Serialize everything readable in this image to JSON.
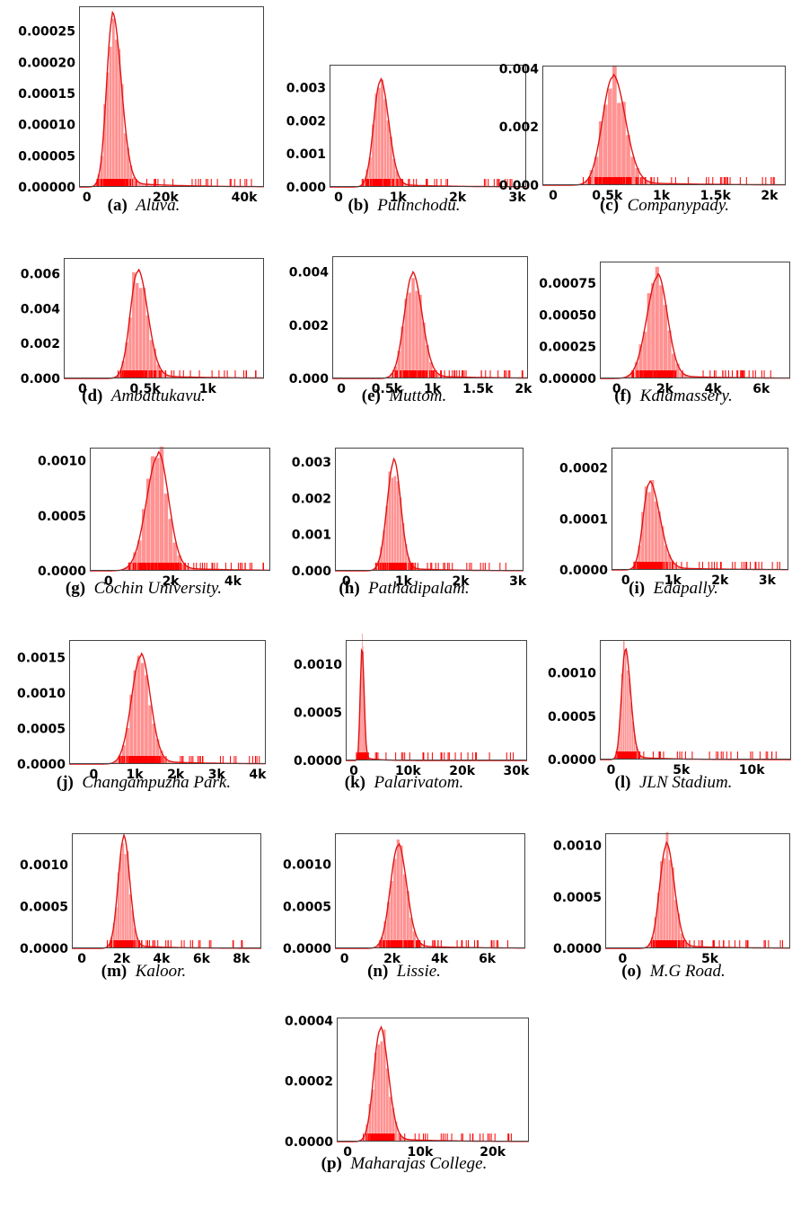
{
  "figure": {
    "colors": {
      "bar": "#ff7f7f",
      "kde": "#e01515",
      "rug": "#ff0000"
    },
    "subplots": [
      {
        "letter": "(a)",
        "name": "Aluva."
      },
      {
        "letter": "(b)",
        "name": "Pulinchodu."
      },
      {
        "letter": "(c)",
        "name": "Companypady."
      },
      {
        "letter": "(d)",
        "name": "Ambattukavu."
      },
      {
        "letter": "(e)",
        "name": "Muttom."
      },
      {
        "letter": "(f)",
        "name": "Kalamassery."
      },
      {
        "letter": "(g)",
        "name": "Cochin University."
      },
      {
        "letter": "(h)",
        "name": "Pathadipalam."
      },
      {
        "letter": "(i)",
        "name": "Edapally."
      },
      {
        "letter": "(j)",
        "name": "Changampuzha Park."
      },
      {
        "letter": "(k)",
        "name": "Palarivatom."
      },
      {
        "letter": "(l)",
        "name": "JLN Stadium."
      },
      {
        "letter": "(m)",
        "name": "Kaloor."
      },
      {
        "letter": "(n)",
        "name": "Lissie."
      },
      {
        "letter": "(o)",
        "name": "M.G Road."
      },
      {
        "letter": "(p)",
        "name": "Maharajas College."
      }
    ]
  },
  "chart_data": [
    {
      "type": "area",
      "xlim": [
        -2000,
        45000
      ],
      "ylim": [
        0,
        0.00029
      ],
      "mode": 6500,
      "peak": 0.000272,
      "sdL": 1500,
      "sdR": 2200,
      "rugMax": 42000,
      "yticks": [
        0,
        5e-05,
        0.0001,
        0.00015,
        0.0002,
        0.00025
      ],
      "yticklabels": [
        "0.00000",
        "0.00005",
        "0.00010",
        "0.00015",
        "0.00020",
        "0.00025"
      ],
      "xticks": [
        0,
        20000,
        40000
      ],
      "xticklabels": [
        "0",
        "20k",
        "40k"
      ]
    },
    {
      "type": "area",
      "xlim": [
        -150,
        3150
      ],
      "ylim": [
        0,
        0.0037
      ],
      "mode": 700,
      "peak": 0.0032,
      "sdL": 110,
      "sdR": 140,
      "rugMax": 2950,
      "yticks": [
        0,
        0.001,
        0.002,
        0.003
      ],
      "yticklabels": [
        "0.000",
        "0.001",
        "0.002",
        "0.003"
      ],
      "xticks": [
        0,
        1000,
        2000,
        3000
      ],
      "xticklabels": [
        "0",
        "1k",
        "2k",
        "3k"
      ]
    },
    {
      "type": "area",
      "xlim": [
        -100,
        2150
      ],
      "ylim": [
        0,
        0.0041
      ],
      "mode": 550,
      "peak": 0.0037,
      "sdL": 95,
      "sdR": 115,
      "rugMax": 2050,
      "yticks": [
        0,
        0.002,
        0.004
      ],
      "yticklabels": [
        "0.000",
        "0.002",
        "0.004"
      ],
      "xticks": [
        0,
        500,
        1000,
        1500,
        2000
      ],
      "xticklabels": [
        "0",
        "0.5k",
        "1k",
        "1.5k",
        "2k"
      ]
    },
    {
      "type": "area",
      "xlim": [
        -150,
        1450
      ],
      "ylim": [
        0,
        0.0069
      ],
      "mode": 440,
      "peak": 0.0061,
      "sdL": 60,
      "sdR": 80,
      "rugMax": 1400,
      "yticks": [
        0,
        0.002,
        0.004,
        0.006
      ],
      "yticklabels": [
        "0.000",
        "0.002",
        "0.004",
        "0.006"
      ],
      "xticks": [
        0,
        500,
        1000
      ],
      "xticklabels": [
        "0",
        "0.5k",
        "1k"
      ]
    },
    {
      "type": "area",
      "xlim": [
        -100,
        2050
      ],
      "ylim": [
        0,
        0.0046
      ],
      "mode": 780,
      "peak": 0.0039,
      "sdL": 90,
      "sdR": 105,
      "rugMax": 2000,
      "yticks": [
        0,
        0.002,
        0.004
      ],
      "yticklabels": [
        "0.000",
        "0.002",
        "0.004"
      ],
      "xticks": [
        0,
        500,
        1000,
        1500,
        2000
      ],
      "xticklabels": [
        "0",
        "0.5k",
        "1k",
        "1.5k",
        "2k"
      ]
    },
    {
      "type": "area",
      "xlim": [
        -700,
        7200
      ],
      "ylim": [
        0,
        0.00092
      ],
      "mode": 1700,
      "peak": 0.0008,
      "sdL": 450,
      "sdR": 400,
      "rugMax": 6900,
      "yticks": [
        0,
        0.00025,
        0.0005,
        0.00075
      ],
      "yticklabels": [
        "0.00000",
        "0.00025",
        "0.00050",
        "0.00075"
      ],
      "xticks": [
        0,
        2000,
        4000,
        6000
      ],
      "xticklabels": [
        "0",
        "2k",
        "4k",
        "6k"
      ]
    },
    {
      "type": "area",
      "xlim": [
        -600,
        5200
      ],
      "ylim": [
        0,
        0.00112
      ],
      "mode": 1600,
      "peak": 0.00105,
      "sdL": 380,
      "sdR": 330,
      "rugMax": 5000,
      "yticks": [
        0,
        0.0005,
        0.001
      ],
      "yticklabels": [
        "0.0000",
        "0.0005",
        "0.0010"
      ],
      "xticks": [
        0,
        2000,
        4000
      ],
      "xticklabels": [
        "0",
        "2k",
        "4k"
      ]
    },
    {
      "type": "area",
      "xlim": [
        -200,
        3100
      ],
      "ylim": [
        0,
        0.0034
      ],
      "mode": 830,
      "peak": 0.003,
      "sdL": 120,
      "sdR": 120,
      "rugMax": 2900,
      "yticks": [
        0,
        0.001,
        0.002,
        0.003
      ],
      "yticklabels": [
        "0.000",
        "0.001",
        "0.002",
        "0.003"
      ],
      "xticks": [
        0,
        1000,
        2000,
        3000
      ],
      "xticklabels": [
        "0",
        "1k",
        "2k",
        "3k"
      ]
    },
    {
      "type": "area",
      "xlim": [
        -300,
        3450
      ],
      "ylim": [
        0,
        0.00024
      ],
      "mode": 500,
      "peak": 0.00017,
      "sdL": 130,
      "sdR": 220,
      "rugMax": 3300,
      "yticks": [
        0,
        0.0001,
        0.0002
      ],
      "yticklabels": [
        "0.0000",
        "0.0001",
        "0.0002"
      ],
      "xticks": [
        0,
        1000,
        2000,
        3000
      ],
      "xticklabels": [
        "0",
        "1k",
        "2k",
        "3k"
      ]
    },
    {
      "type": "area",
      "xlim": [
        -600,
        4200
      ],
      "ylim": [
        0,
        0.00175
      ],
      "mode": 1150,
      "peak": 0.00152,
      "sdL": 230,
      "sdR": 230,
      "rugMax": 4100,
      "yticks": [
        0,
        0.0005,
        0.001,
        0.0015
      ],
      "yticklabels": [
        "0.0000",
        "0.0005",
        "0.0010",
        "0.0015"
      ],
      "xticks": [
        0,
        1000,
        2000,
        3000,
        4000
      ],
      "xticklabels": [
        "0",
        "1k",
        "2k",
        "3k",
        "4k"
      ]
    },
    {
      "type": "area",
      "xlim": [
        -1500,
        32000
      ],
      "ylim": [
        0,
        0.00125
      ],
      "mode": 1500,
      "peak": 0.00117,
      "sdL": 320,
      "sdR": 380,
      "rugMax": 30000,
      "yticks": [
        0,
        0.0005,
        0.001
      ],
      "yticklabels": [
        "0.0000",
        "0.0005",
        "0.0010"
      ],
      "xticks": [
        0,
        10000,
        20000,
        30000
      ],
      "xticklabels": [
        "0",
        "10k",
        "20k",
        "30k"
      ]
    },
    {
      "type": "area",
      "xlim": [
        -800,
        12800
      ],
      "ylim": [
        0,
        0.00138
      ],
      "mode": 1000,
      "peak": 0.00126,
      "sdL": 260,
      "sdR": 380,
      "rugMax": 12300,
      "yticks": [
        0,
        0.0005,
        0.001
      ],
      "yticklabels": [
        "0.0000",
        "0.0005",
        "0.0010"
      ],
      "xticks": [
        0,
        5000,
        10000
      ],
      "xticklabels": [
        "0",
        "5k",
        "10k"
      ]
    },
    {
      "type": "area",
      "xlim": [
        -500,
        9000
      ],
      "ylim": [
        0,
        0.00138
      ],
      "mode": 2100,
      "peak": 0.00132,
      "sdL": 280,
      "sdR": 300,
      "rugMax": 8200,
      "yticks": [
        0,
        0.0005,
        0.001
      ],
      "yticklabels": [
        "0.0000",
        "0.0005",
        "0.0010"
      ],
      "xticks": [
        0,
        2000,
        4000,
        6000,
        8000
      ],
      "xticklabels": [
        "0",
        "2k",
        "4k",
        "6k",
        "8k"
      ]
    },
    {
      "type": "area",
      "xlim": [
        -400,
        7600
      ],
      "ylim": [
        0,
        0.00137
      ],
      "mode": 2250,
      "peak": 0.00122,
      "sdL": 320,
      "sdR": 360,
      "rugMax": 7300,
      "yticks": [
        0,
        0.0005,
        0.001
      ],
      "yticklabels": [
        "0.0000",
        "0.0005",
        "0.0010"
      ],
      "xticks": [
        0,
        2000,
        4000,
        6000
      ],
      "xticklabels": [
        "0",
        "2k",
        "4k",
        "6k"
      ]
    },
    {
      "type": "area",
      "xlim": [
        -1000,
        9600
      ],
      "ylim": [
        0,
        0.00112
      ],
      "mode": 2500,
      "peak": 0.001,
      "sdL": 380,
      "sdR": 450,
      "rugMax": 9200,
      "yticks": [
        0,
        0.0005,
        0.001
      ],
      "yticklabels": [
        "0.0000",
        "0.0005",
        "0.0010"
      ],
      "xticks": [
        0,
        5000
      ],
      "xticklabels": [
        "0",
        "5k"
      ]
    },
    {
      "type": "area",
      "xlim": [
        -1500,
        25000
      ],
      "ylim": [
        0,
        0.00041
      ],
      "mode": 4500,
      "peak": 0.00037,
      "sdL": 900,
      "sdR": 1100,
      "rugMax": 23000,
      "yticks": [
        0,
        0.0002,
        0.0004
      ],
      "yticklabels": [
        "0.0000",
        "0.0002",
        "0.0004"
      ],
      "xticks": [
        0,
        10000,
        20000
      ],
      "xticklabels": [
        "0",
        "10k",
        "20k"
      ]
    }
  ]
}
